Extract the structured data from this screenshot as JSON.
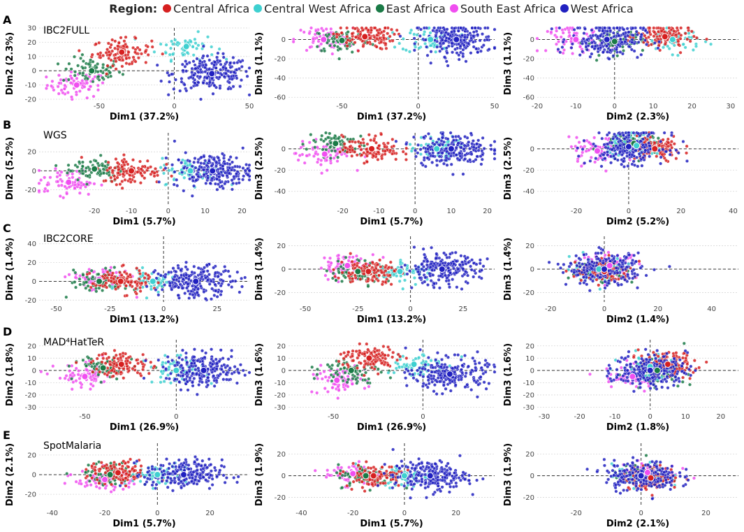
{
  "legend": {
    "title": "Region:",
    "entries": [
      {
        "label": "Central Africa",
        "color": "#d62020"
      },
      {
        "label": "Central West Africa",
        "color": "#3ed0d0"
      },
      {
        "label": "East Africa",
        "color": "#1a7a46"
      },
      {
        "label": "South East Africa",
        "color": "#f04ef0"
      },
      {
        "label": "West Africa",
        "color": "#2020c0"
      }
    ]
  },
  "chart_data": [
    {
      "panel": "A",
      "dataset": "IBC2FULL",
      "type": "scatter",
      "xlabel": "Dim1 (37.2%)",
      "ylabel": "Dim2 (2.3%)",
      "xlim": [
        -90,
        50
      ],
      "ylim": [
        -20,
        30
      ],
      "xticks": [
        -50,
        0,
        50
      ],
      "yticks": [
        -20,
        -10,
        0,
        10,
        20,
        30
      ],
      "yticklabels": [
        "-20",
        "-10",
        "0",
        "10",
        "20",
        "30"
      ],
      "centroids": {
        "Central Africa": [
          -35,
          13
        ],
        "Central West Africa": [
          8,
          17
        ],
        "East Africa": [
          -55,
          0
        ],
        "South East Africa": [
          -65,
          -10
        ],
        "West Africa": [
          25,
          -2
        ]
      }
    },
    {
      "panel": "A",
      "dataset": "",
      "type": "scatter",
      "xlabel": "Dim1 (37.2%)",
      "ylabel": "Dim3 (1.1%)",
      "xlim": [
        -85,
        50
      ],
      "ylim": [
        -62,
        12
      ],
      "xticks": [
        -50,
        0,
        50
      ],
      "yticks": [
        -60,
        -40,
        -20,
        0
      ],
      "yticklabels": [
        "-60",
        "-40",
        "-20",
        "0"
      ],
      "centroids": {
        "Central Africa": [
          -35,
          3
        ],
        "Central West Africa": [
          8,
          0
        ],
        "East Africa": [
          -50,
          -1
        ],
        "South East Africa": [
          -62,
          0
        ],
        "West Africa": [
          25,
          0
        ]
      }
    },
    {
      "panel": "A",
      "dataset": "",
      "type": "scatter",
      "xlabel": "Dim2 (2.3%)",
      "ylabel": "Dim3 (1.1%)",
      "xlim": [
        -20,
        32
      ],
      "ylim": [
        -62,
        12
      ],
      "xticks": [
        -20,
        -10,
        0,
        10,
        20,
        30
      ],
      "yticks": [
        -60,
        -40,
        -20,
        0
      ],
      "yticklabels": [
        "-60",
        "-40",
        "-20",
        "0"
      ],
      "centroids": {
        "Central Africa": [
          13,
          3
        ],
        "Central West Africa": [
          15,
          0
        ],
        "East Africa": [
          0,
          -2
        ],
        "South East Africa": [
          -10,
          0
        ],
        "West Africa": [
          -2,
          0
        ]
      }
    },
    {
      "panel": "B",
      "dataset": "WGS",
      "type": "scatter",
      "xlabel": "Dim1 (5.7%)",
      "ylabel": "Dim2 (5.2%)",
      "xlim": [
        -35,
        22
      ],
      "ylim": [
        -35,
        40
      ],
      "xticks": [
        -20,
        -10,
        0,
        10,
        20
      ],
      "yticks": [
        -20,
        0,
        20
      ],
      "yticklabels": [
        "-20",
        "0",
        "20"
      ],
      "centroids": {
        "Central Africa": [
          -10,
          0
        ],
        "Central West Africa": [
          6,
          0
        ],
        "East Africa": [
          -20,
          2
        ],
        "South East Africa": [
          -27,
          -12
        ],
        "West Africa": [
          12,
          0
        ]
      }
    },
    {
      "panel": "B",
      "dataset": "",
      "type": "scatter",
      "xlabel": "Dim1 (5.7%)",
      "ylabel": "Dim3 (2.5%)",
      "xlim": [
        -35,
        22
      ],
      "ylim": [
        -52,
        15
      ],
      "xticks": [
        -20,
        -10,
        0,
        10,
        20
      ],
      "yticks": [
        -40,
        -20,
        0
      ],
      "yticklabels": [
        "-40",
        "-20",
        "0"
      ],
      "centroids": {
        "Central Africa": [
          -12,
          0
        ],
        "Central West Africa": [
          6,
          0
        ],
        "East Africa": [
          -22,
          5
        ],
        "South East Africa": [
          -25,
          -5
        ],
        "West Africa": [
          10,
          0
        ]
      }
    },
    {
      "panel": "B",
      "dataset": "",
      "type": "scatter",
      "xlabel": "Dim2 (5.2%)",
      "ylabel": "Dim3 (2.5%)",
      "xlim": [
        -35,
        42
      ],
      "ylim": [
        -52,
        15
      ],
      "xticks": [
        -20,
        0,
        20,
        40
      ],
      "yticks": [
        -40,
        -20,
        0
      ],
      "yticklabels": [
        "-40",
        "-20",
        "0"
      ],
      "centroids": {
        "Central Africa": [
          10,
          0
        ],
        "Central West Africa": [
          3,
          3
        ],
        "East Africa": [
          2,
          5
        ],
        "South East Africa": [
          -12,
          -2
        ],
        "West Africa": [
          0,
          2
        ]
      }
    },
    {
      "panel": "C",
      "dataset": "IBC2CORE",
      "type": "scatter",
      "xlabel": "Dim1 (13.2%)",
      "ylabel": "Dim2 (1.4%)",
      "xlim": [
        -58,
        40
      ],
      "ylim": [
        -22,
        48
      ],
      "xticks": [
        -50,
        -25,
        0,
        25
      ],
      "yticks": [
        -20,
        0,
        20,
        40
      ],
      "yticklabels": [
        "-20",
        "0",
        "20",
        "40"
      ],
      "centroids": {
        "Central Africa": [
          -20,
          0
        ],
        "Central West Africa": [
          -5,
          0
        ],
        "East Africa": [
          -30,
          0
        ],
        "South East Africa": [
          -30,
          2
        ],
        "West Africa": [
          15,
          0
        ]
      }
    },
    {
      "panel": "C",
      "dataset": "",
      "type": "scatter",
      "xlabel": "Dim1 (13.2%)",
      "ylabel": "Dim3 (1.4%)",
      "xlim": [
        -58,
        40
      ],
      "ylim": [
        -28,
        28
      ],
      "xticks": [
        -50,
        -25,
        0,
        25
      ],
      "yticks": [
        -20,
        0,
        20
      ],
      "yticklabels": [
        "-20",
        "0",
        "20"
      ],
      "centroids": {
        "Central Africa": [
          -20,
          -2
        ],
        "Central West Africa": [
          -5,
          -2
        ],
        "East Africa": [
          -25,
          -2
        ],
        "South East Africa": [
          -30,
          3
        ],
        "West Africa": [
          15,
          0
        ]
      }
    },
    {
      "panel": "C",
      "dataset": "",
      "type": "scatter",
      "xlabel": "Dim2 (1.4%)",
      "ylabel": "Dim3 (1.4%)",
      "xlim": [
        -25,
        50
      ],
      "ylim": [
        -28,
        28
      ],
      "xticks": [
        -20,
        0,
        20,
        40
      ],
      "yticks": [
        -20,
        0,
        20
      ],
      "yticklabels": [
        "-20",
        "0",
        "20"
      ],
      "centroids": {
        "Central Africa": [
          0,
          -2
        ],
        "Central West Africa": [
          -2,
          0
        ],
        "East Africa": [
          0,
          -2
        ],
        "South East Africa": [
          2,
          3
        ],
        "West Africa": [
          0,
          0
        ]
      }
    },
    {
      "panel": "D",
      "dataset": "MAD⁴HatTeR",
      "type": "scatter",
      "xlabel": "Dim1 (26.9%)",
      "ylabel": "Dim2 (1.8%)",
      "xlim": [
        -75,
        40
      ],
      "ylim": [
        -32,
        25
      ],
      "xticks": [
        -50,
        0
      ],
      "yticks": [
        -30,
        -20,
        -10,
        0,
        10,
        20
      ],
      "yticklabels": [
        "-30",
        "-20",
        "-10",
        "0",
        "10",
        "20"
      ],
      "centroids": {
        "Central Africa": [
          -30,
          5
        ],
        "Central West Africa": [
          0,
          0
        ],
        "East Africa": [
          -40,
          2
        ],
        "South East Africa": [
          -50,
          -5
        ],
        "West Africa": [
          15,
          0
        ]
      }
    },
    {
      "panel": "D",
      "dataset": "",
      "type": "scatter",
      "xlabel": "Dim1 (26.9%)",
      "ylabel": "Dim3 (1.6%)",
      "xlim": [
        -75,
        40
      ],
      "ylim": [
        -32,
        25
      ],
      "xticks": [
        -50,
        0
      ],
      "yticks": [
        -30,
        -20,
        -10,
        0,
        10,
        20
      ],
      "yticklabels": [
        "-30",
        "-20",
        "-10",
        "0",
        "10",
        "20"
      ],
      "centroids": {
        "Central Africa": [
          -30,
          10
        ],
        "Central West Africa": [
          -5,
          5
        ],
        "East Africa": [
          -40,
          0
        ],
        "South East Africa": [
          -48,
          -8
        ],
        "West Africa": [
          15,
          -3
        ]
      }
    },
    {
      "panel": "D",
      "dataset": "",
      "type": "scatter",
      "xlabel": "Dim2 (1.8%)",
      "ylabel": "Dim3 (1.6%)",
      "xlim": [
        -32,
        25
      ],
      "ylim": [
        -32,
        25
      ],
      "xticks": [
        -30,
        -20,
        -10,
        0,
        10,
        20
      ],
      "yticks": [
        -30,
        -20,
        -10,
        0,
        10,
        20
      ],
      "yticklabels": [
        "-30",
        "-20",
        "-10",
        "0",
        "10",
        "20"
      ],
      "centroids": {
        "Central Africa": [
          5,
          5
        ],
        "Central West Africa": [
          0,
          3
        ],
        "East Africa": [
          2,
          0
        ],
        "South East Africa": [
          -5,
          -5
        ],
        "West Africa": [
          0,
          0
        ]
      }
    },
    {
      "panel": "E",
      "dataset": "SpotMalaria",
      "type": "scatter",
      "xlabel": "Dim1 (5.7%)",
      "ylabel": "Dim2 (2.1%)",
      "xlim": [
        -45,
        35
      ],
      "ylim": [
        -32,
        32
      ],
      "xticks": [
        -40,
        -20,
        0,
        20
      ],
      "yticks": [
        -20,
        0,
        20
      ],
      "yticklabels": [
        "-20",
        "0",
        "20"
      ],
      "centroids": {
        "Central Africa": [
          -15,
          2
        ],
        "Central West Africa": [
          0,
          0
        ],
        "East Africa": [
          -18,
          0
        ],
        "South East Africa": [
          -20,
          -5
        ],
        "West Africa": [
          10,
          0
        ]
      }
    },
    {
      "panel": "E",
      "dataset": "",
      "type": "scatter",
      "xlabel": "Dim1 (5.7%)",
      "ylabel": "Dim3 (1.9%)",
      "xlim": [
        -45,
        35
      ],
      "ylim": [
        -28,
        30
      ],
      "xticks": [
        -40,
        -20,
        0,
        20
      ],
      "yticks": [
        -20,
        0,
        20
      ],
      "yticklabels": [
        "-20",
        "0",
        "20"
      ],
      "centroids": {
        "Central Africa": [
          -12,
          0
        ],
        "Central West Africa": [
          0,
          0
        ],
        "East Africa": [
          -15,
          0
        ],
        "South East Africa": [
          -20,
          2
        ],
        "West Africa": [
          10,
          0
        ]
      }
    },
    {
      "panel": "E",
      "dataset": "",
      "type": "scatter",
      "xlabel": "Dim2 (2.1%)",
      "ylabel": "Dim3 (1.9%)",
      "xlim": [
        -32,
        30
      ],
      "ylim": [
        -28,
        30
      ],
      "xticks": [
        -20,
        0,
        20
      ],
      "yticks": [
        -20,
        0,
        20
      ],
      "yticklabels": [
        "-20",
        "0",
        "20"
      ],
      "centroids": {
        "Central Africa": [
          3,
          -2
        ],
        "Central West Africa": [
          0,
          0
        ],
        "East Africa": [
          0,
          0
        ],
        "South East Africa": [
          2,
          3
        ],
        "West Africa": [
          0,
          0
        ]
      }
    }
  ]
}
